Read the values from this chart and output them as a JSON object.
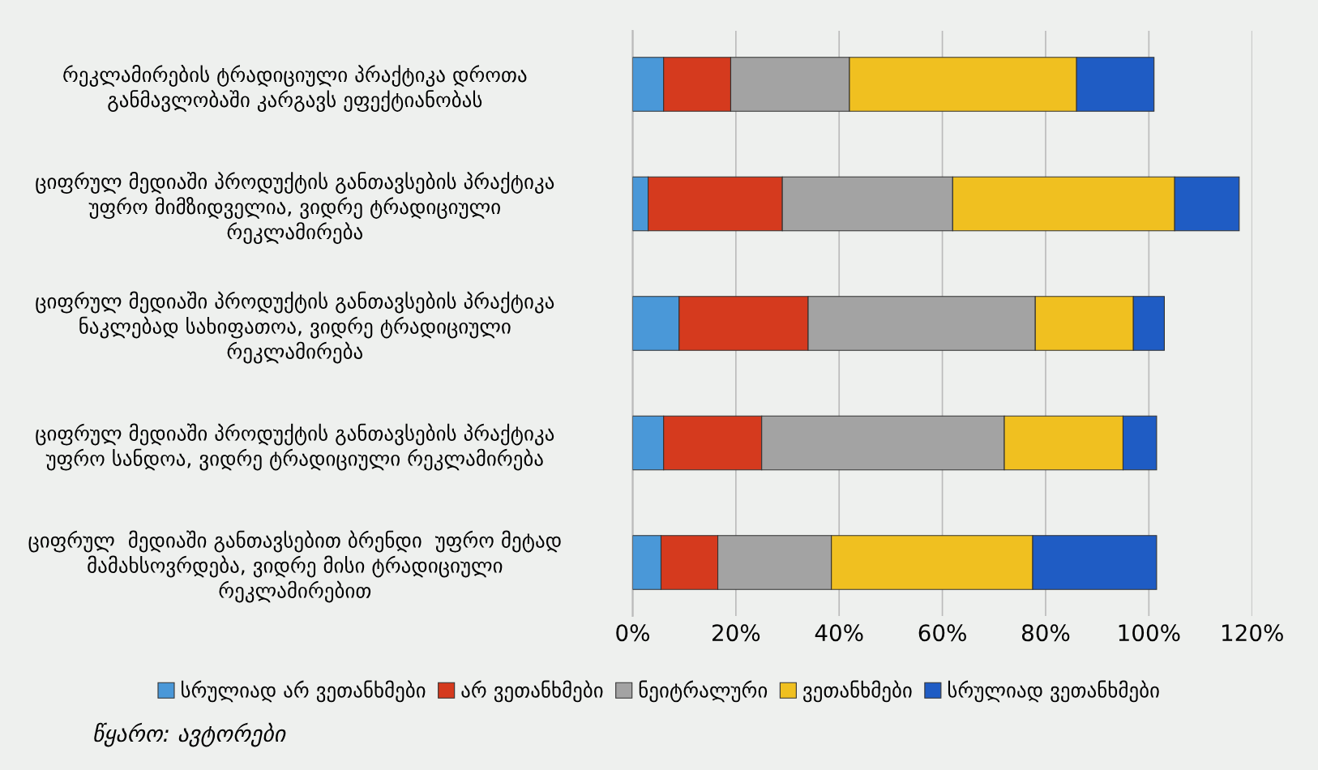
{
  "chart_data": {
    "type": "bar",
    "orientation": "horizontal",
    "stacked": true,
    "categories": [
      "რეკლამირების ტრადიციული პრაქტიკა დროთა\nგანმავლობაში კარგავს ეფექტიანობას",
      "ციფრულ მედიაში პროდუქტის განთავსების პრაქტიკა\nუფრო მიმზიდველია, ვიდრე ტრადიციული\nრეკლამირება",
      "ციფრულ მედიაში პროდუქტის განთავსების პრაქტიკა\nნაკლებად სახიფათოა, ვიდრე ტრადიციული\nრეკლამირება",
      "ციფრულ მედიაში პროდუქტის განთავსების პრაქტიკა\nუფრო სანდოა, ვიდრე ტრადიციული რეკლამირება",
      "ციფრულ  მედიაში განთავსებით ბრენდი  უფრო მეტად\nმამახსოვრდება, ვიდრე მისი ტრადიციული\nრეკლამირებით"
    ],
    "series": [
      {
        "name": "სრულიად არ ვეთანხმები",
        "color": "#4a98d8",
        "values": [
          6,
          3,
          9,
          6,
          5.5
        ]
      },
      {
        "name": "არ ვეთანხმები",
        "color": "#d53a1e",
        "values": [
          13,
          26,
          25,
          19,
          11
        ]
      },
      {
        "name": "ნეიტრალური",
        "color": "#a3a3a3",
        "values": [
          23,
          33,
          44,
          47,
          22
        ]
      },
      {
        "name": "ვეთანხმები",
        "color": "#f0c020",
        "values": [
          44,
          43,
          19,
          23,
          39
        ]
      },
      {
        "name": "სრულიად ვეთანხმები",
        "color": "#1f5cc4",
        "values": [
          15,
          12.5,
          6,
          6.5,
          24
        ]
      }
    ],
    "xlim": [
      0,
      120
    ],
    "xticks": [
      {
        "value": 0,
        "label": "0%"
      },
      {
        "value": 20,
        "label": "20%"
      },
      {
        "value": 40,
        "label": "40%"
      },
      {
        "value": 60,
        "label": "60%"
      },
      {
        "value": 80,
        "label": "80%"
      },
      {
        "value": 100,
        "label": "100%"
      },
      {
        "value": 120,
        "label": "120%"
      }
    ],
    "grid": "x",
    "legend": "bottom",
    "annotations": [
      "წყარო: ავტორები"
    ]
  }
}
